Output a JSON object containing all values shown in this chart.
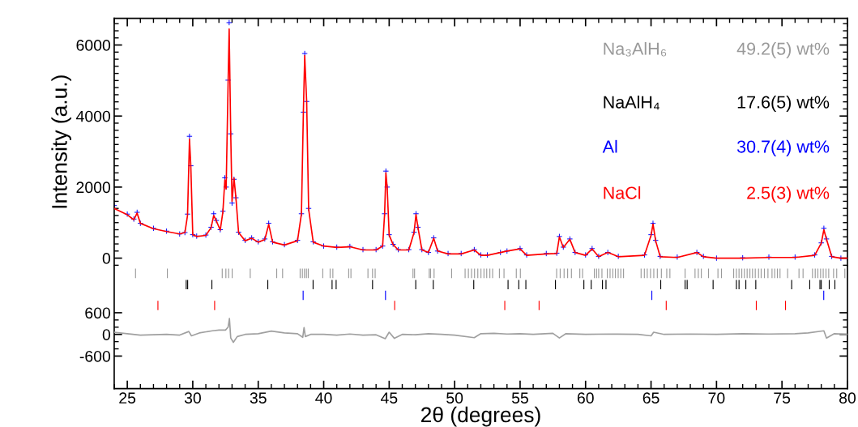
{
  "chart_data": [
    {
      "type": "line",
      "ylabel": "Intensity (a.u.)",
      "xlim": [
        24,
        80
      ],
      "ylim": [
        -210,
        6750
      ],
      "tick_labels": "y",
      "xticks": [
        {
          "value": 24,
          "label": null
        },
        25,
        {
          "value": 26,
          "label": null
        },
        {
          "value": 27,
          "label": null
        },
        {
          "value": 28,
          "label": null
        },
        {
          "value": 29,
          "label": null
        },
        30,
        {
          "value": 31,
          "label": null
        },
        {
          "value": 32,
          "label": null
        },
        {
          "value": 33,
          "label": null
        },
        {
          "value": 34,
          "label": null
        },
        35,
        {
          "value": 36,
          "label": null
        },
        {
          "value": 37,
          "label": null
        },
        {
          "value": 38,
          "label": null
        },
        {
          "value": 39,
          "label": null
        },
        40,
        {
          "value": 41,
          "label": null
        },
        {
          "value": 42,
          "label": null
        },
        {
          "value": 43,
          "label": null
        },
        {
          "value": 44,
          "label": null
        },
        45,
        {
          "value": 46,
          "label": null
        },
        {
          "value": 47,
          "label": null
        },
        {
          "value": 48,
          "label": null
        },
        {
          "value": 49,
          "label": null
        },
        50,
        {
          "value": 51,
          "label": null
        },
        {
          "value": 52,
          "label": null
        },
        {
          "value": 53,
          "label": null
        },
        {
          "value": 54,
          "label": null
        },
        55,
        {
          "value": 56,
          "label": null
        },
        {
          "value": 57,
          "label": null
        },
        {
          "value": 58,
          "label": null
        },
        {
          "value": 59,
          "label": null
        },
        60,
        {
          "value": 61,
          "label": null
        },
        {
          "value": 62,
          "label": null
        },
        {
          "value": 63,
          "label": null
        },
        {
          "value": 64,
          "label": null
        },
        65,
        {
          "value": 66,
          "label": null
        },
        {
          "value": 67,
          "label": null
        },
        {
          "value": 68,
          "label": null
        },
        {
          "value": 69,
          "label": null
        },
        70,
        {
          "value": 71,
          "label": null
        },
        {
          "value": 72,
          "label": null
        },
        {
          "value": 73,
          "label": null
        },
        {
          "value": 74,
          "label": null
        },
        75,
        {
          "value": 76,
          "label": null
        },
        {
          "value": 77,
          "label": null
        },
        {
          "value": 78,
          "label": null
        },
        {
          "value": 79,
          "label": null
        },
        80
      ],
      "yticks": [
        {
          "value": -200,
          "label": null
        },
        0,
        {
          "value": 200,
          "label": null
        },
        {
          "value": 400,
          "label": null
        },
        {
          "value": 600,
          "label": null
        },
        {
          "value": 800,
          "label": null
        },
        {
          "value": 1000,
          "label": null
        },
        {
          "value": 1200,
          "label": null
        },
        {
          "value": 1400,
          "label": null
        },
        {
          "value": 1600,
          "label": null
        },
        {
          "value": 1800,
          "label": null
        },
        2000,
        {
          "value": 2200,
          "label": null
        },
        {
          "value": 2400,
          "label": null
        },
        {
          "value": 2600,
          "label": null
        },
        {
          "value": 2800,
          "label": null
        },
        {
          "value": 3000,
          "label": null
        },
        {
          "value": 3200,
          "label": null
        },
        {
          "value": 3400,
          "label": null
        },
        {
          "value": 3600,
          "label": null
        },
        {
          "value": 3800,
          "label": null
        },
        4000,
        {
          "value": 4200,
          "label": null
        },
        {
          "value": 4400,
          "label": null
        },
        {
          "value": 4600,
          "label": null
        },
        {
          "value": 4800,
          "label": null
        },
        {
          "value": 5000,
          "label": null
        },
        {
          "value": 5200,
          "label": null
        },
        {
          "value": 5400,
          "label": null
        },
        {
          "value": 5600,
          "label": null
        },
        {
          "value": 5800,
          "label": null
        },
        6000,
        {
          "value": 6200,
          "label": null
        },
        {
          "value": 6400,
          "label": null
        },
        {
          "value": 6600,
          "label": null
        }
      ],
      "annotations": [
        "Na₃AlH₆",
        "49.2(5) wt%",
        "NaAlH₄",
        "17.6(5) wt%",
        "Al",
        "30.7(4) wt%",
        "NaCl",
        "2.5(3) wt%"
      ],
      "series": [
        {
          "type": "scatter",
          "marker": "cross",
          "color": "#0000ff",
          "x": [
            24,
            25,
            25.5,
            25.75,
            26,
            27,
            28,
            29,
            29.4,
            29.6,
            29.75,
            29.85,
            30,
            30.3,
            31,
            31.4,
            31.6,
            31.8,
            32.1,
            32.3,
            32.45,
            32.55,
            32.7,
            32.78,
            32.9,
            33,
            33.15,
            33.3,
            33.5,
            34,
            34.5,
            35,
            35.5,
            35.8,
            36.1,
            37,
            38,
            38.3,
            38.45,
            38.55,
            38.7,
            38.85,
            39.2,
            40,
            41,
            42,
            43,
            44,
            44.5,
            44.65,
            44.75,
            44.85,
            45,
            45.3,
            45.7,
            46.5,
            46.9,
            47.05,
            47.2,
            47.5,
            48,
            48.4,
            48.7,
            49.5,
            50.5,
            51.5,
            52,
            52.5,
            53.5,
            54,
            55,
            55.5,
            57,
            57.8,
            58,
            58.3,
            58.8,
            59.2,
            60,
            60.5,
            61,
            61.7,
            62.5,
            64.5,
            65,
            65.15,
            65.35,
            65.7,
            67,
            68.5,
            69,
            70,
            72,
            74,
            76,
            77.5,
            78,
            78.2,
            78.4,
            78.8,
            79.5,
            80
          ],
          "values": [
            1480,
            1240,
            1100,
            1290,
            980,
            840,
            760,
            680,
            720,
            1240,
            3430,
            2600,
            660,
            620,
            650,
            870,
            1250,
            1060,
            800,
            1320,
            2260,
            2000,
            5010,
            6630,
            3500,
            1550,
            2220,
            1700,
            730,
            500,
            570,
            460,
            540,
            980,
            460,
            380,
            500,
            1250,
            4110,
            5760,
            4410,
            1400,
            460,
            340,
            310,
            330,
            240,
            240,
            340,
            1250,
            2450,
            2000,
            660,
            390,
            240,
            240,
            730,
            1250,
            870,
            240,
            160,
            570,
            200,
            130,
            130,
            240,
            90,
            90,
            160,
            200,
            270,
            90,
            130,
            140,
            610,
            310,
            540,
            160,
            90,
            270,
            50,
            160,
            50,
            90,
            660,
            980,
            500,
            50,
            30,
            160,
            50,
            0,
            10,
            30,
            30,
            90,
            430,
            840,
            540,
            50,
            0,
            0
          ]
        },
        {
          "type": "line",
          "color": "#ff0000",
          "x": [
            24,
            25,
            25.5,
            25.75,
            26,
            27,
            28,
            29,
            29.4,
            29.6,
            29.75,
            29.85,
            30,
            30.3,
            31,
            31.4,
            31.6,
            31.8,
            32.1,
            32.3,
            32.45,
            32.55,
            32.7,
            32.78,
            32.9,
            33,
            33.15,
            33.3,
            33.5,
            34,
            34.5,
            35,
            35.5,
            35.8,
            36.1,
            37,
            38,
            38.3,
            38.45,
            38.55,
            38.7,
            38.85,
            39.2,
            40,
            41,
            42,
            43,
            44,
            44.5,
            44.65,
            44.75,
            44.85,
            45,
            45.3,
            45.7,
            46.5,
            46.9,
            47.05,
            47.2,
            47.5,
            48,
            48.4,
            48.7,
            49.5,
            50.5,
            51.5,
            52,
            52.5,
            53.5,
            54,
            55,
            55.5,
            57,
            57.8,
            58,
            58.3,
            58.8,
            59.2,
            60,
            60.5,
            61,
            61.7,
            62.5,
            64.5,
            65,
            65.15,
            65.35,
            65.7,
            67,
            68.5,
            69,
            70,
            72,
            74,
            76,
            77.5,
            78,
            78.2,
            78.4,
            78.8,
            79.5,
            80
          ],
          "values": [
            1400,
            1220,
            1080,
            1270,
            980,
            830,
            750,
            680,
            720,
            1200,
            3350,
            2600,
            660,
            610,
            640,
            860,
            1200,
            1050,
            790,
            1300,
            2200,
            1950,
            4950,
            6450,
            3500,
            1600,
            2250,
            1680,
            720,
            490,
            560,
            450,
            520,
            950,
            450,
            370,
            490,
            1250,
            4150,
            5700,
            4400,
            1380,
            450,
            340,
            300,
            320,
            230,
            230,
            340,
            1230,
            2400,
            1980,
            650,
            380,
            230,
            230,
            720,
            1230,
            860,
            230,
            160,
            560,
            200,
            120,
            120,
            230,
            80,
            80,
            160,
            200,
            260,
            80,
            120,
            130,
            600,
            300,
            530,
            160,
            80,
            260,
            40,
            160,
            40,
            80,
            640,
            960,
            490,
            40,
            20,
            160,
            40,
            0,
            0,
            20,
            20,
            80,
            420,
            800,
            530,
            40,
            0,
            0
          ]
        }
      ]
    },
    {
      "type": "line",
      "xlabel": "2θ (degrees)",
      "xlim": [
        24,
        80
      ],
      "ylim": [
        -1500,
        1900
      ],
      "xticks": [
        {
          "value": 24,
          "label": null
        },
        25,
        {
          "value": 26,
          "label": null
        },
        {
          "value": 27,
          "label": null
        },
        {
          "value": 28,
          "label": null
        },
        {
          "value": 29,
          "label": null
        },
        30,
        {
          "value": 31,
          "label": null
        },
        {
          "value": 32,
          "label": null
        },
        {
          "value": 33,
          "label": null
        },
        {
          "value": 34,
          "label": null
        },
        35,
        {
          "value": 36,
          "label": null
        },
        {
          "value": 37,
          "label": null
        },
        {
          "value": 38,
          "label": null
        },
        {
          "value": 39,
          "label": null
        },
        40,
        {
          "value": 41,
          "label": null
        },
        {
          "value": 42,
          "label": null
        },
        {
          "value": 43,
          "label": null
        },
        {
          "value": 44,
          "label": null
        },
        45,
        {
          "value": 46,
          "label": null
        },
        {
          "value": 47,
          "label": null
        },
        {
          "value": 48,
          "label": null
        },
        {
          "value": 49,
          "label": null
        },
        50,
        {
          "value": 51,
          "label": null
        },
        {
          "value": 52,
          "label": null
        },
        {
          "value": 53,
          "label": null
        },
        {
          "value": 54,
          "label": null
        },
        55,
        {
          "value": 56,
          "label": null
        },
        {
          "value": 57,
          "label": null
        },
        {
          "value": 58,
          "label": null
        },
        {
          "value": 59,
          "label": null
        },
        60,
        {
          "value": 61,
          "label": null
        },
        {
          "value": 62,
          "label": null
        },
        {
          "value": 63,
          "label": null
        },
        {
          "value": 64,
          "label": null
        },
        65,
        {
          "value": 66,
          "label": null
        },
        {
          "value": 67,
          "label": null
        },
        {
          "value": 68,
          "label": null
        },
        {
          "value": 69,
          "label": null
        },
        70,
        {
          "value": 71,
          "label": null
        },
        {
          "value": 72,
          "label": null
        },
        {
          "value": 73,
          "label": null
        },
        {
          "value": 74,
          "label": null
        },
        75,
        {
          "value": 76,
          "label": null
        },
        {
          "value": 77,
          "label": null
        },
        {
          "value": 78,
          "label": null
        },
        {
          "value": 79,
          "label": null
        },
        80
      ],
      "yticks": [
        -600,
        {
          "value": -400,
          "label": null
        },
        {
          "value": -200,
          "label": null
        },
        0,
        {
          "value": 200,
          "label": null
        },
        {
          "value": 400,
          "label": null
        },
        600
      ],
      "series": [
        {
          "color": "#a0a0a0",
          "x": [
            24,
            25,
            26,
            27,
            28,
            29,
            29.7,
            29.9,
            30.5,
            31.5,
            32,
            32.5,
            32.7,
            32.8,
            32.9,
            33.1,
            33.4,
            34,
            35,
            36,
            37,
            38,
            38.4,
            38.5,
            38.6,
            39,
            40,
            41,
            42,
            43,
            44,
            44.7,
            45,
            45.4,
            46,
            47,
            48,
            49,
            50,
            51.5,
            52,
            53,
            54,
            55,
            56,
            57.5,
            58,
            58.5,
            60,
            62,
            64,
            65,
            65.2,
            66,
            68,
            70,
            72,
            74,
            76,
            77,
            78.2,
            78.4,
            79,
            80
          ],
          "values": [
            60,
            20,
            -20,
            -10,
            0,
            -20,
            80,
            -40,
            40,
            100,
            120,
            120,
            200,
            440,
            -100,
            -220,
            -60,
            0,
            20,
            90,
            40,
            20,
            -80,
            190,
            -60,
            0,
            0,
            -20,
            10,
            -20,
            -10,
            -120,
            60,
            -110,
            0,
            -10,
            20,
            0,
            -20,
            -90,
            20,
            30,
            10,
            20,
            0,
            30,
            -100,
            20,
            0,
            10,
            0,
            -40,
            60,
            0,
            10,
            0,
            20,
            10,
            20,
            40,
            100,
            -100,
            20,
            0
          ]
        },
        {
          "type": "bar",
          "color": "#999999",
          "x": [
            25.63,
            28.06,
            32.25,
            32.53,
            32.74,
            33.01,
            34.39,
            36.41,
            36.86,
            38.2,
            38.37,
            38.53,
            38.68,
            38.82,
            39.93,
            40.49,
            40.7,
            41.91,
            42.08,
            43.38,
            43.73,
            43.93,
            46.82,
            46.94,
            48.06,
            48.16,
            48.43,
            49.77,
            50.8,
            51.05,
            51.29,
            51.52,
            51.77,
            52.01,
            52.24,
            52.45,
            52.69,
            52.9,
            53.42,
            53.77,
            54.71,
            55.02,
            57.79,
            58.06,
            58.36,
            58.63,
            58.92,
            59.56,
            59.77,
            60.67,
            60.84,
            61.0,
            61.25,
            61.66,
            61.87,
            62.08,
            62.28,
            62.49,
            62.69,
            62.9,
            64.24,
            64.49,
            64.71,
            64.96,
            65.21,
            65.48,
            65.79,
            66.2,
            66.44,
            67.6,
            68.36,
            68.61,
            68.84,
            69.39,
            70.11,
            70.38,
            71.31,
            71.52,
            71.72,
            71.93,
            72.13,
            72.34,
            72.55,
            72.75,
            72.96,
            73.21,
            73.41,
            73.66,
            73.93,
            74.24,
            74.44,
            74.65,
            74.85,
            75.43,
            76.3,
            76.61,
            77.33,
            77.54,
            77.74,
            77.95,
            78.15,
            78.36,
            78.57,
            78.94,
            79.18,
            79.8
          ],
          "base": [
            1560,
            1560,
            1560,
            1560,
            1560,
            1560,
            1560,
            1560,
            1560,
            1560,
            1560,
            1560,
            1560,
            1560,
            1560,
            1560,
            1560,
            1560,
            1560,
            1560,
            1560,
            1560,
            1560,
            1560,
            1560,
            1560,
            1560,
            1560,
            1560,
            1560,
            1560,
            1560,
            1560,
            1560,
            1560,
            1560,
            1560,
            1560,
            1560,
            1560,
            1560,
            1560,
            1560,
            1560,
            1560,
            1560,
            1560,
            1560,
            1560,
            1560,
            1560,
            1560,
            1560,
            1560,
            1560,
            1560,
            1560,
            1560,
            1560,
            1560,
            1560,
            1560,
            1560,
            1560,
            1560,
            1560,
            1560,
            1560,
            1560,
            1560,
            1560,
            1560,
            1560,
            1560,
            1560,
            1560,
            1560,
            1560,
            1560,
            1560,
            1560,
            1560,
            1560,
            1560,
            1560,
            1560,
            1560,
            1560,
            1560,
            1560,
            1560,
            1560,
            1560,
            1560,
            1560,
            1560,
            1560,
            1560,
            1560,
            1560,
            1560,
            1560,
            1560,
            1560,
            1560,
            1560
          ],
          "values": [
            260,
            260,
            260,
            260,
            260,
            260,
            260,
            260,
            260,
            260,
            260,
            260,
            260,
            260,
            260,
            260,
            260,
            260,
            260,
            260,
            260,
            260,
            260,
            260,
            260,
            260,
            260,
            260,
            260,
            260,
            260,
            260,
            260,
            260,
            260,
            260,
            260,
            260,
            260,
            260,
            260,
            260,
            260,
            260,
            260,
            260,
            260,
            260,
            260,
            260,
            260,
            260,
            260,
            260,
            260,
            260,
            260,
            260,
            260,
            260,
            260,
            260,
            260,
            260,
            260,
            260,
            260,
            260,
            260,
            260,
            260,
            260,
            260,
            260,
            260,
            260,
            260,
            260,
            260,
            260,
            260,
            260,
            260,
            260,
            260,
            260,
            260,
            260,
            260,
            260,
            260,
            260,
            260,
            260,
            260,
            260,
            260,
            260,
            260,
            260,
            260,
            260,
            260,
            260,
            260,
            260
          ]
        },
        {
          "type": "bar",
          "color": "#000000",
          "x": [
            29.5,
            29.61,
            31.46,
            35.73,
            39.19,
            40.64,
            40.95,
            43.73,
            47.03,
            48.37,
            51.46,
            54.08,
            54.9,
            55.44,
            57.7,
            59.87,
            60.43,
            61.29,
            61.56,
            65.74,
            67.6,
            67.76,
            69.74,
            71.52,
            71.72,
            72.24,
            73.0,
            75.74,
            77.12,
            77.9,
            78.0,
            78.61,
            79.04
          ],
          "base": [
            1250,
            1250,
            1250,
            1250,
            1250,
            1250,
            1250,
            1250,
            1250,
            1250,
            1250,
            1250,
            1250,
            1250,
            1250,
            1250,
            1250,
            1250,
            1250,
            1250,
            1250,
            1250,
            1250,
            1250,
            1250,
            1250,
            1250,
            1250,
            1250,
            1250,
            1250,
            1250,
            1250
          ],
          "values": [
            260,
            260,
            260,
            260,
            260,
            260,
            260,
            260,
            260,
            260,
            260,
            260,
            260,
            260,
            260,
            260,
            260,
            260,
            260,
            260,
            260,
            260,
            260,
            260,
            260,
            260,
            260,
            260,
            260,
            260,
            260,
            260,
            260
          ]
        },
        {
          "type": "bar",
          "color": "#0000ff",
          "x": [
            38.43,
            44.72,
            65.06,
            78.19
          ],
          "base": [
            950,
            950,
            950,
            950
          ],
          "values": [
            260,
            260,
            260,
            260
          ]
        },
        {
          "type": "bar",
          "color": "#ff0000",
          "x": [
            27.34,
            31.67,
            45.42,
            53.83,
            56.45,
            66.16,
            73.04,
            75.27
          ],
          "base": [
            670,
            670,
            670,
            670,
            670,
            670,
            670,
            670
          ],
          "values": [
            260,
            260,
            260,
            260,
            260,
            260,
            260,
            260
          ]
        }
      ]
    }
  ]
}
